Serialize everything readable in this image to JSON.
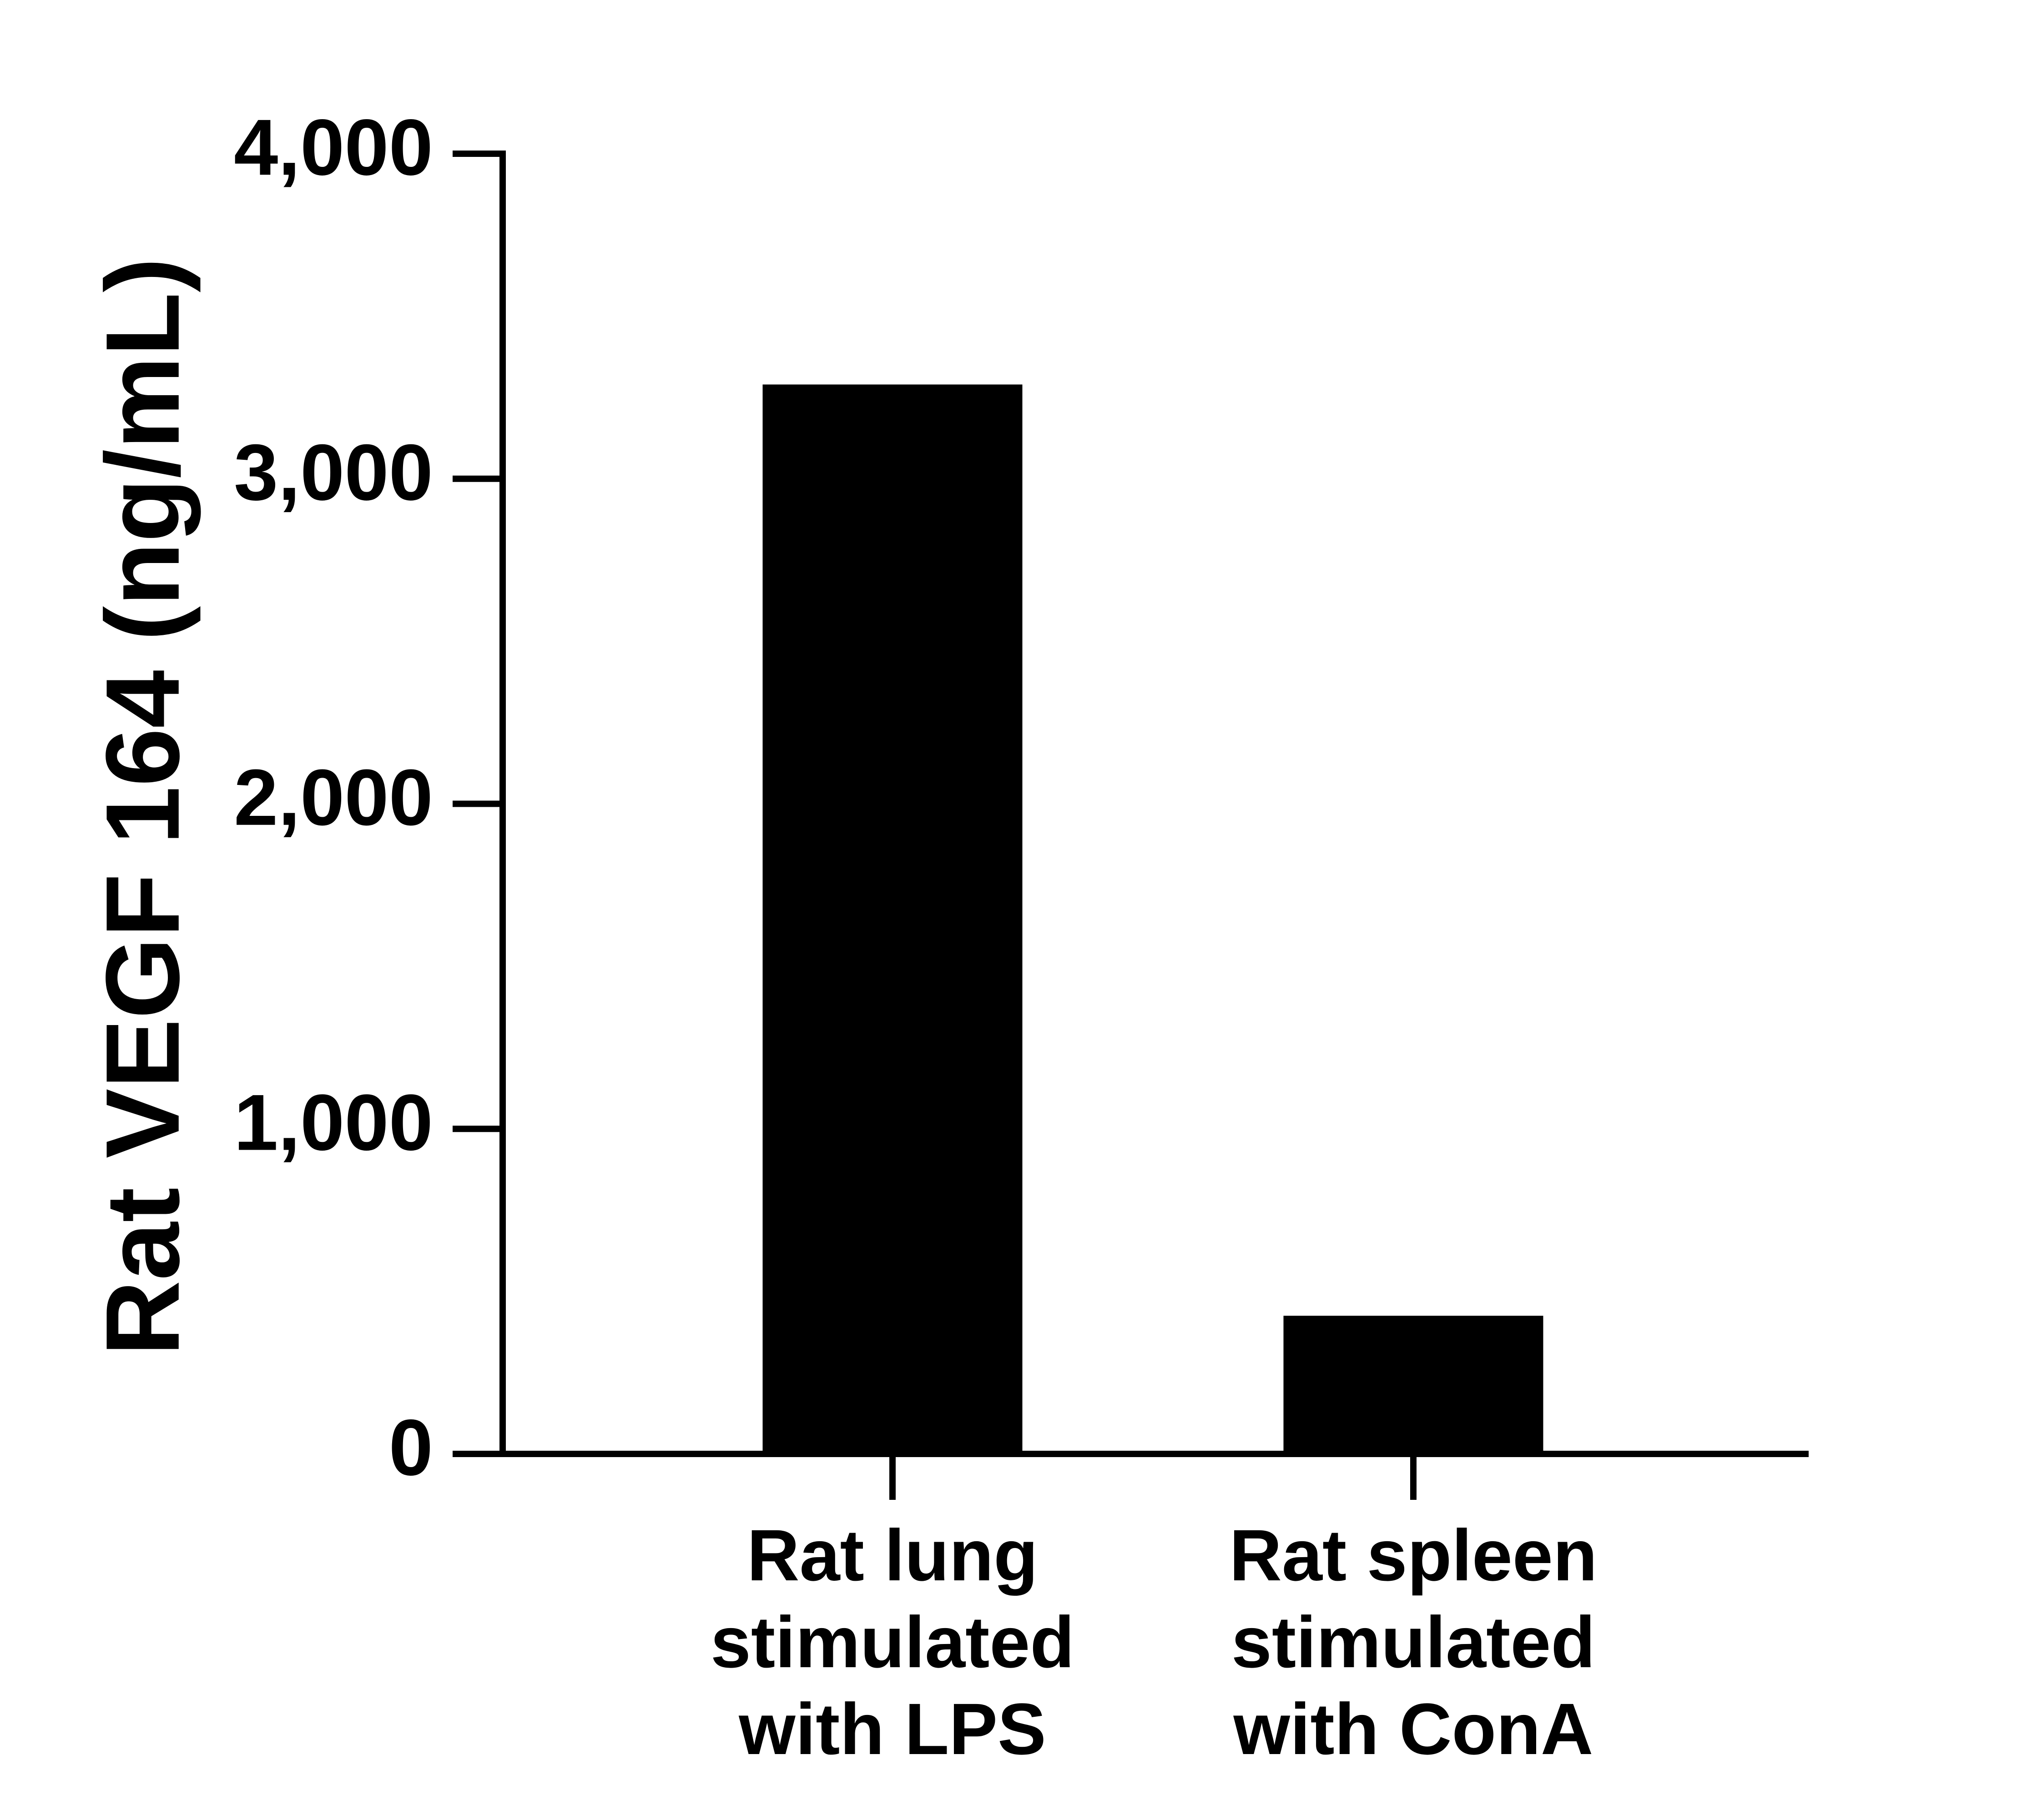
{
  "chart_data": {
    "type": "bar",
    "ylabel": "Rat VEGF 164 (ng/mL)",
    "categories": [
      "Rat lung\nstimulated\nwith LPS",
      "Rat spleen\nstimulated\nwith ConA"
    ],
    "values": [
      3290,
      425
    ],
    "color": "#000000",
    "ylim": [
      0,
      4000
    ],
    "yticks": [
      0,
      {
        "value": 1000,
        "label": "1,000"
      },
      {
        "value": 2000,
        "label": "2,000"
      },
      {
        "value": 3000,
        "label": "3,000"
      },
      {
        "value": 4000,
        "label": "4,000"
      }
    ],
    "grid": false
  }
}
